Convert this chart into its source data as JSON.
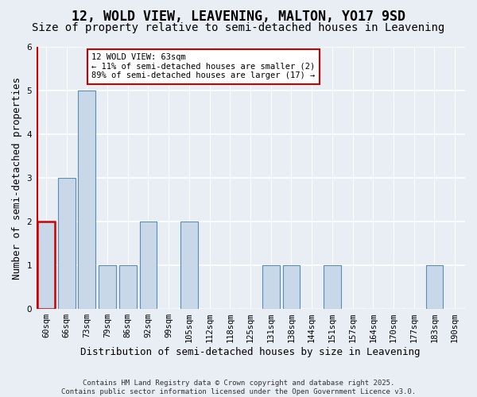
{
  "title": "12, WOLD VIEW, LEAVENING, MALTON, YO17 9SD",
  "subtitle": "Size of property relative to semi-detached houses in Leavening",
  "xlabel": "Distribution of semi-detached houses by size in Leavening",
  "ylabel": "Number of semi-detached properties",
  "categories": [
    "60sqm",
    "66sqm",
    "73sqm",
    "79sqm",
    "86sqm",
    "92sqm",
    "99sqm",
    "105sqm",
    "112sqm",
    "118sqm",
    "125sqm",
    "131sqm",
    "138sqm",
    "144sqm",
    "151sqm",
    "157sqm",
    "164sqm",
    "170sqm",
    "177sqm",
    "183sqm",
    "190sqm"
  ],
  "values": [
    2,
    3,
    5,
    1,
    1,
    2,
    0,
    2,
    0,
    0,
    0,
    1,
    1,
    0,
    1,
    0,
    0,
    0,
    0,
    1,
    0
  ],
  "highlight_bar_index": 0,
  "bar_color": "#c8d8e8",
  "bar_edge_color": "#5a8db5",
  "highlight_edge_color": "#cc0000",
  "annotation_text": "12 WOLD VIEW: 63sqm\n← 11% of semi-detached houses are smaller (2)\n89% of semi-detached houses are larger (17) →",
  "annotation_box_facecolor": "#ffffff",
  "annotation_box_edgecolor": "#cc0000",
  "ylim": [
    0,
    6
  ],
  "yticks": [
    0,
    1,
    2,
    3,
    4,
    5,
    6
  ],
  "footnote": "Contains HM Land Registry data © Crown copyright and database right 2025.\nContains public sector information licensed under the Open Government Licence v3.0.",
  "background_color": "#e8eef4",
  "grid_color": "#ffffff",
  "title_fontsize": 12,
  "subtitle_fontsize": 10,
  "ylabel_fontsize": 9,
  "xlabel_fontsize": 9,
  "tick_fontsize": 7.5,
  "footnote_fontsize": 6.5,
  "annotation_fontsize": 7.5
}
